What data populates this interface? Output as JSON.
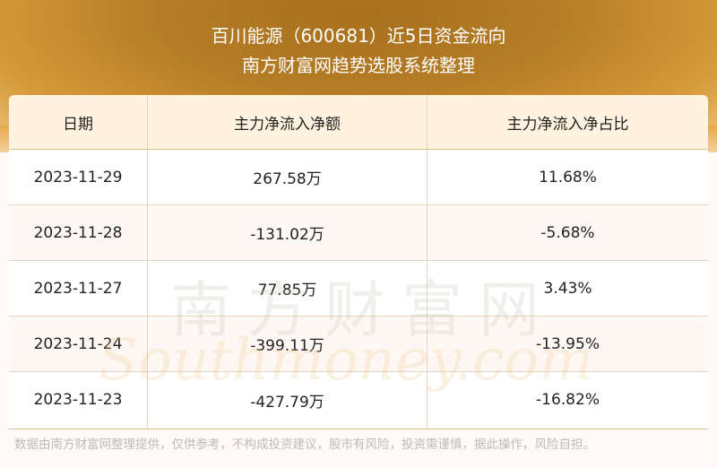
{
  "header": {
    "title": "百川能源（600681）近5日资金流向",
    "subtitle": "南方财富网趋势选股系统整理"
  },
  "table": {
    "columns": [
      "日期",
      "主力净流入净额",
      "主力净流入净占比"
    ],
    "rows": [
      [
        "2023-11-29",
        "267.58万",
        "11.68%"
      ],
      [
        "2023-11-28",
        "-131.02万",
        "-5.68%"
      ],
      [
        "2023-11-27",
        "77.85万",
        "3.43%"
      ],
      [
        "2023-11-24",
        "-399.11万",
        "-13.95%"
      ],
      [
        "2023-11-23",
        "-427.79万",
        "-16.82%"
      ]
    ]
  },
  "watermark": {
    "cn": "南方财富网",
    "en": "Southmoney.com"
  },
  "footer": "数据由南方财富网整理提供，仅供参考，不构成投资建议，股市有风险，投资需谨慎，据此操作，风险自担。",
  "colors": {
    "banner": "#b57d25",
    "header_row": "#fff3df",
    "alt_row": "#fdf8f3",
    "border": "#e3bf8a"
  }
}
